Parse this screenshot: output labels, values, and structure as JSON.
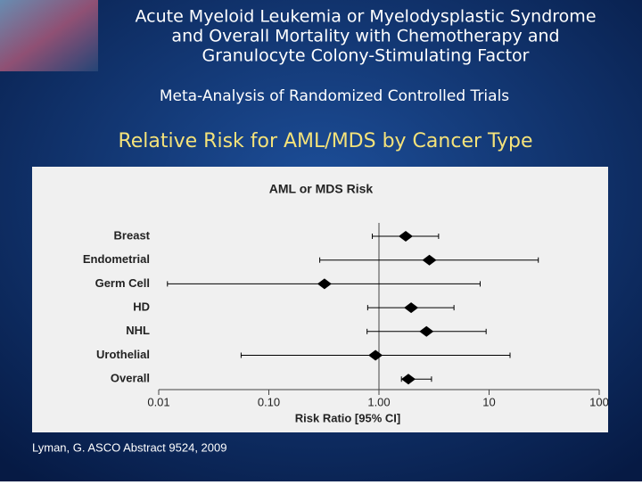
{
  "slide": {
    "title_lines": [
      "Acute Myeloid Leukemia or Myelodysplastic Syndrome",
      "and Overall Mortality with Chemotherapy and",
      "Granulocyte Colony-Stimulating Factor"
    ],
    "subtitle": "Meta-Analysis of Randomized Controlled Trials",
    "heading": "Relative Risk for AML/MDS by Cancer Type",
    "footnote": "Lyman, G.  ASCO Abstract 9524, 2009"
  },
  "chart_data": {
    "type": "forest",
    "title": "AML or MDS Risk",
    "x_label": "Risk Ratio [95% CI]",
    "log_x": true,
    "xlim": [
      0.01,
      100
    ],
    "xticks": [
      0.01,
      {
        "value": 0.1,
        "label": "0.10"
      },
      {
        "value": 1,
        "label": "1.00"
      },
      10,
      100
    ],
    "reference": 1,
    "categories": [
      "Breast",
      "Endometrial",
      "Germ Cell",
      "HD",
      "NHL",
      "Urothelial",
      "Overall"
    ],
    "values": [
      1.75,
      2.87,
      0.32,
      1.96,
      2.7,
      0.93,
      1.85
    ],
    "lower": [
      0.87,
      0.29,
      0.012,
      0.79,
      0.78,
      0.056,
      1.6
    ],
    "upper": [
      3.48,
      28,
      8.3,
      4.8,
      9.4,
      15.5,
      3.0
    ],
    "color": "#000000"
  }
}
